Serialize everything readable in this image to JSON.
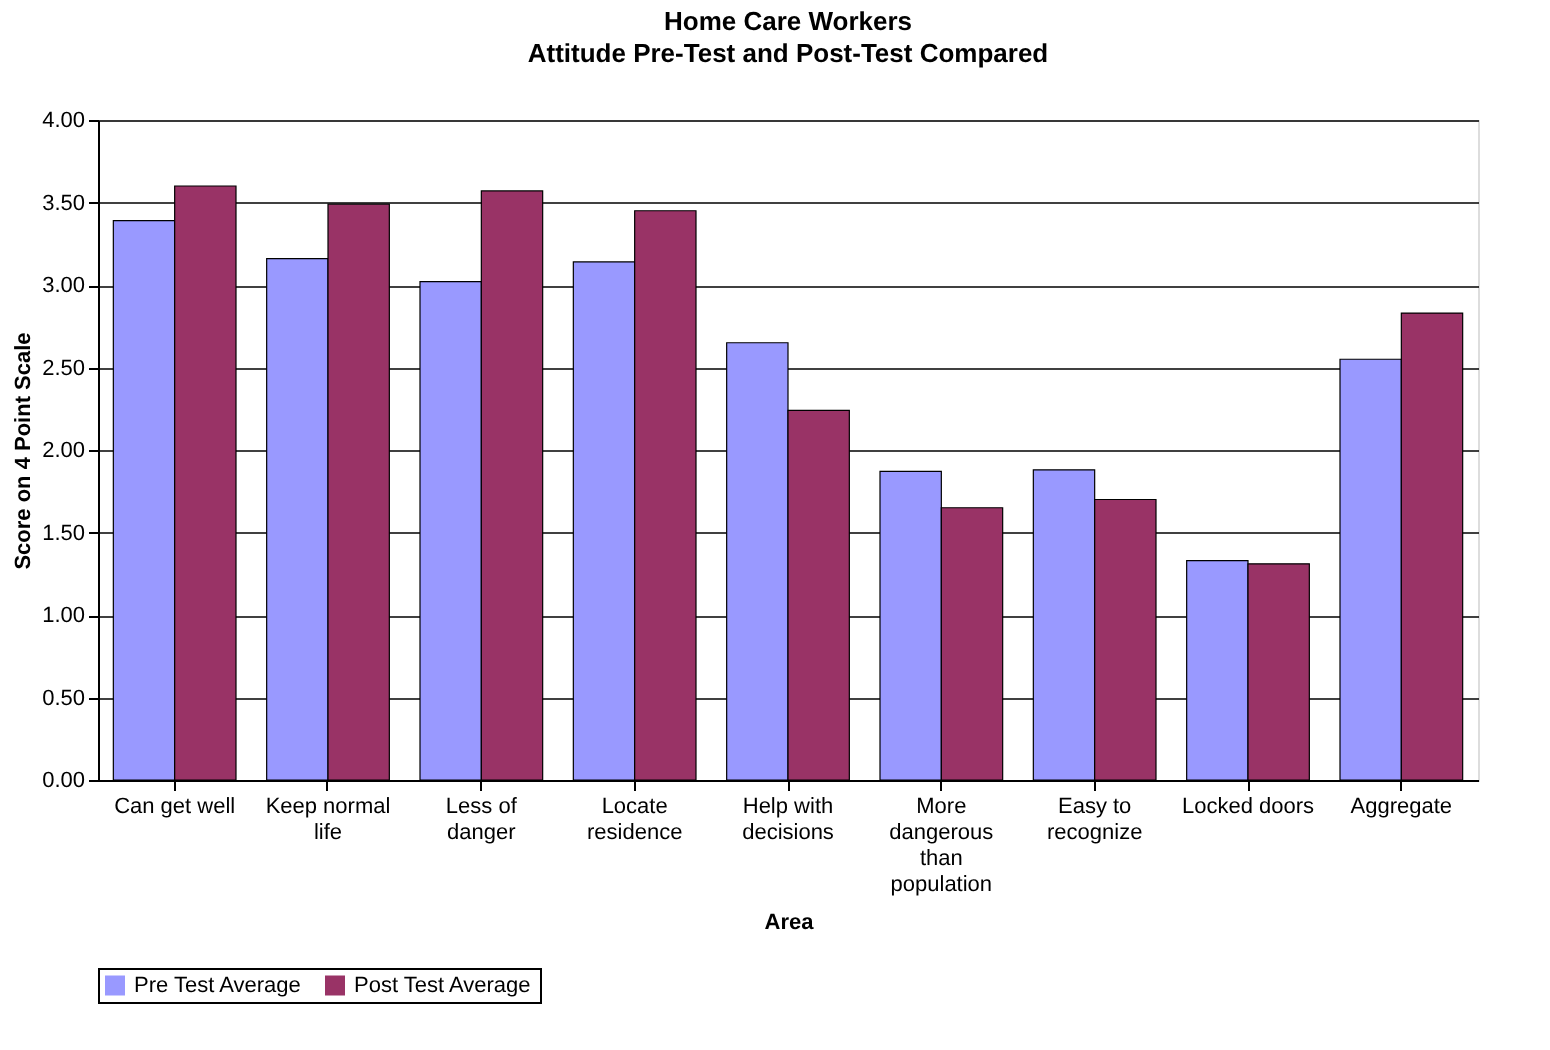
{
  "chart_data": {
    "type": "bar",
    "title": "Home Care Workers",
    "subtitle": "Attitude Pre-Test and Post-Test Compared",
    "xlabel": "Area",
    "ylabel": "Score on 4 Point Scale",
    "categories": [
      "Can get well",
      "Keep normal life",
      "Less of danger",
      "Locate residence",
      "Help with decisions",
      "More dangerous than population",
      "Easy to recognize",
      "Locked doors",
      "Aggregate"
    ],
    "series": [
      {
        "name": "Pre Test Average",
        "color": "#9999ff",
        "values": [
          3.39,
          3.16,
          3.02,
          3.14,
          2.65,
          1.87,
          1.88,
          1.33,
          2.55
        ]
      },
      {
        "name": "Post Test Average",
        "color": "#993366",
        "values": [
          3.6,
          3.49,
          3.57,
          3.45,
          2.24,
          1.65,
          1.7,
          1.31,
          2.83
        ]
      }
    ],
    "ylim": [
      0,
      4
    ],
    "yticks": [
      {
        "value": 0,
        "label": "0.00"
      },
      {
        "value": 0.5,
        "label": "0.50"
      },
      {
        "value": 1,
        "label": "1.00"
      },
      {
        "value": 1.5,
        "label": "1.50"
      },
      {
        "value": 2,
        "label": "2.00"
      },
      {
        "value": 2.5,
        "label": "2.50"
      },
      {
        "value": 3,
        "label": "3.00"
      },
      {
        "value": 3.5,
        "label": "3.50"
      },
      {
        "value": 4,
        "label": "4.00"
      }
    ],
    "grid": "y",
    "legend": "bottom"
  }
}
